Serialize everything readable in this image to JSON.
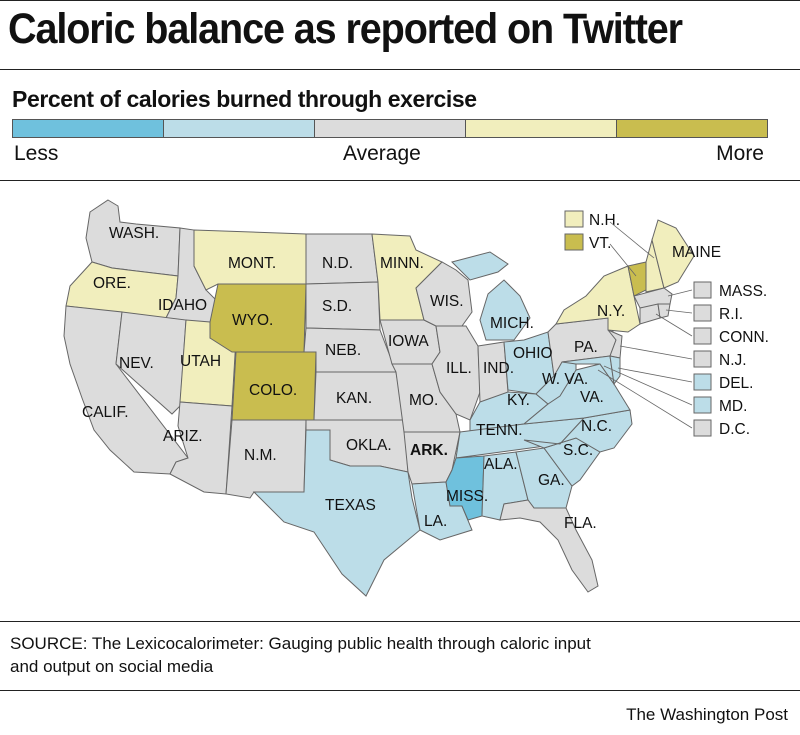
{
  "title": "Caloric balance as reported on Twitter",
  "subtitle": "Percent of calories burned through exercise",
  "legend": {
    "colors": [
      "#6fc1dd",
      "#bcdde8",
      "#dcdcdc",
      "#f1eebd",
      "#c9bd4f"
    ],
    "label_less": "Less",
    "label_average": "Average",
    "label_more": "More"
  },
  "levels": {
    "less": "#6fc1dd",
    "somewhat_less": "#bcdde8",
    "average": "#dcdcdc",
    "somewhat_more": "#f1eebd",
    "more": "#c9bd4f"
  },
  "states": {
    "wa": {
      "label": "WASH.",
      "level": "average"
    },
    "or": {
      "label": "ORE.",
      "level": "somewhat_more"
    },
    "ca": {
      "label": "CALIF.",
      "level": "average"
    },
    "id": {
      "label": "IDAHO",
      "level": "average"
    },
    "nv": {
      "label": "NEV.",
      "level": "average"
    },
    "ut": {
      "label": "UTAH",
      "level": "somewhat_more"
    },
    "az": {
      "label": "ARIZ.",
      "level": "average"
    },
    "mt": {
      "label": "MONT.",
      "level": "somewhat_more"
    },
    "wy": {
      "label": "WYO.",
      "level": "more"
    },
    "co": {
      "label": "COLO.",
      "level": "more"
    },
    "nm": {
      "label": "N.M.",
      "level": "average"
    },
    "nd": {
      "label": "N.D.",
      "level": "average"
    },
    "sd": {
      "label": "S.D.",
      "level": "average"
    },
    "ne": {
      "label": "NEB.",
      "level": "average"
    },
    "ks": {
      "label": "KAN.",
      "level": "average"
    },
    "ok": {
      "label": "OKLA.",
      "level": "average"
    },
    "tx": {
      "label": "TEXAS",
      "level": "somewhat_less"
    },
    "mn": {
      "label": "MINN.",
      "level": "somewhat_more"
    },
    "ia": {
      "label": "IOWA",
      "level": "average"
    },
    "mo": {
      "label": "MO.",
      "level": "average"
    },
    "ar": {
      "label": "ARK.",
      "level": "average"
    },
    "la": {
      "label": "LA.",
      "level": "somewhat_less"
    },
    "wi": {
      "label": "WIS.",
      "level": "average"
    },
    "il": {
      "label": "ILL.",
      "level": "average"
    },
    "mi": {
      "label": "MICH.",
      "level": "somewhat_less"
    },
    "in": {
      "label": "IND.",
      "level": "average"
    },
    "oh": {
      "label": "OHIO",
      "level": "somewhat_less"
    },
    "ky": {
      "label": "KY.",
      "level": "somewhat_less"
    },
    "tn": {
      "label": "TENN.",
      "level": "somewhat_less"
    },
    "ms": {
      "label": "MISS.",
      "level": "less"
    },
    "al": {
      "label": "ALA.",
      "level": "somewhat_less"
    },
    "ga": {
      "label": "GA.",
      "level": "somewhat_less"
    },
    "fl": {
      "label": "FLA.",
      "level": "average"
    },
    "sc": {
      "label": "S.C.",
      "level": "somewhat_less"
    },
    "nc": {
      "label": "N.C.",
      "level": "somewhat_less"
    },
    "va": {
      "label": "VA.",
      "level": "somewhat_less"
    },
    "wv": {
      "label": "W. VA.",
      "level": "somewhat_less"
    },
    "pa": {
      "label": "PA.",
      "level": "average"
    },
    "ny": {
      "label": "N.Y.",
      "level": "somewhat_more"
    },
    "vt": {
      "label": "VT.",
      "level": "more"
    },
    "nh": {
      "label": "N.H.",
      "level": "somewhat_more"
    },
    "me": {
      "label": "MAINE",
      "level": "somewhat_more"
    }
  },
  "small_states": [
    {
      "label": "MASS.",
      "level": "average"
    },
    {
      "label": "R.I.",
      "level": "average"
    },
    {
      "label": "CONN.",
      "level": "average"
    },
    {
      "label": "N.J.",
      "level": "average"
    },
    {
      "label": "DEL.",
      "level": "somewhat_less"
    },
    {
      "label": "MD.",
      "level": "somewhat_less"
    },
    {
      "label": "D.C.",
      "level": "average"
    }
  ],
  "ne_callouts": [
    {
      "label": "N.H.",
      "level": "somewhat_more"
    },
    {
      "label": "VT.",
      "level": "more"
    }
  ],
  "source": "SOURCE: The Lexicocalorimeter: Gauging public health through caloric input and output on social media",
  "credit": "The Washington Post"
}
